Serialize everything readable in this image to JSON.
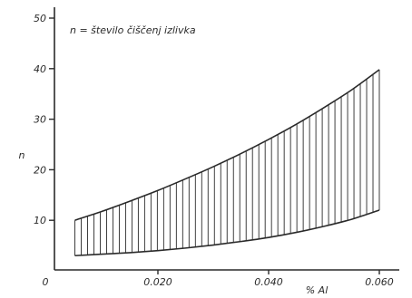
{
  "chart_data": {
    "type": "area",
    "title": "",
    "legend_text": "n = število čiščenj izlivka",
    "xlabel": "% Al",
    "ylabel": "n",
    "xlim": [
      0,
      0.065
    ],
    "ylim": [
      0,
      50
    ],
    "x_ticks": [
      {
        "value": 0,
        "label": "0"
      },
      {
        "value": 0.02,
        "label": "0.020"
      },
      {
        "value": 0.04,
        "label": "0.040"
      },
      {
        "value": 0.06,
        "label": "0.060"
      }
    ],
    "y_ticks": [
      {
        "value": 10,
        "label": "10"
      },
      {
        "value": 20,
        "label": "20"
      },
      {
        "value": 30,
        "label": "30"
      },
      {
        "value": 40,
        "label": "40"
      },
      {
        "value": 50,
        "label": "50"
      }
    ],
    "series": [
      {
        "role": "upper",
        "x": [
          0.005,
          0.01,
          0.015,
          0.02,
          0.025,
          0.03,
          0.035,
          0.04,
          0.045,
          0.05,
          0.055,
          0.06
        ],
        "y": [
          10.0,
          11.8,
          13.8,
          15.9,
          18.2,
          20.6,
          23.2,
          26.0,
          29.0,
          32.3,
          35.8,
          39.8
        ]
      },
      {
        "role": "lower",
        "x": [
          0.005,
          0.01,
          0.015,
          0.02,
          0.025,
          0.03,
          0.035,
          0.04,
          0.045,
          0.05,
          0.055,
          0.06
        ],
        "y": [
          3.0,
          3.3,
          3.6,
          4.0,
          4.5,
          5.1,
          5.8,
          6.6,
          7.6,
          8.8,
          10.2,
          12.0
        ]
      }
    ],
    "hatch": "vertical",
    "grid": false
  }
}
